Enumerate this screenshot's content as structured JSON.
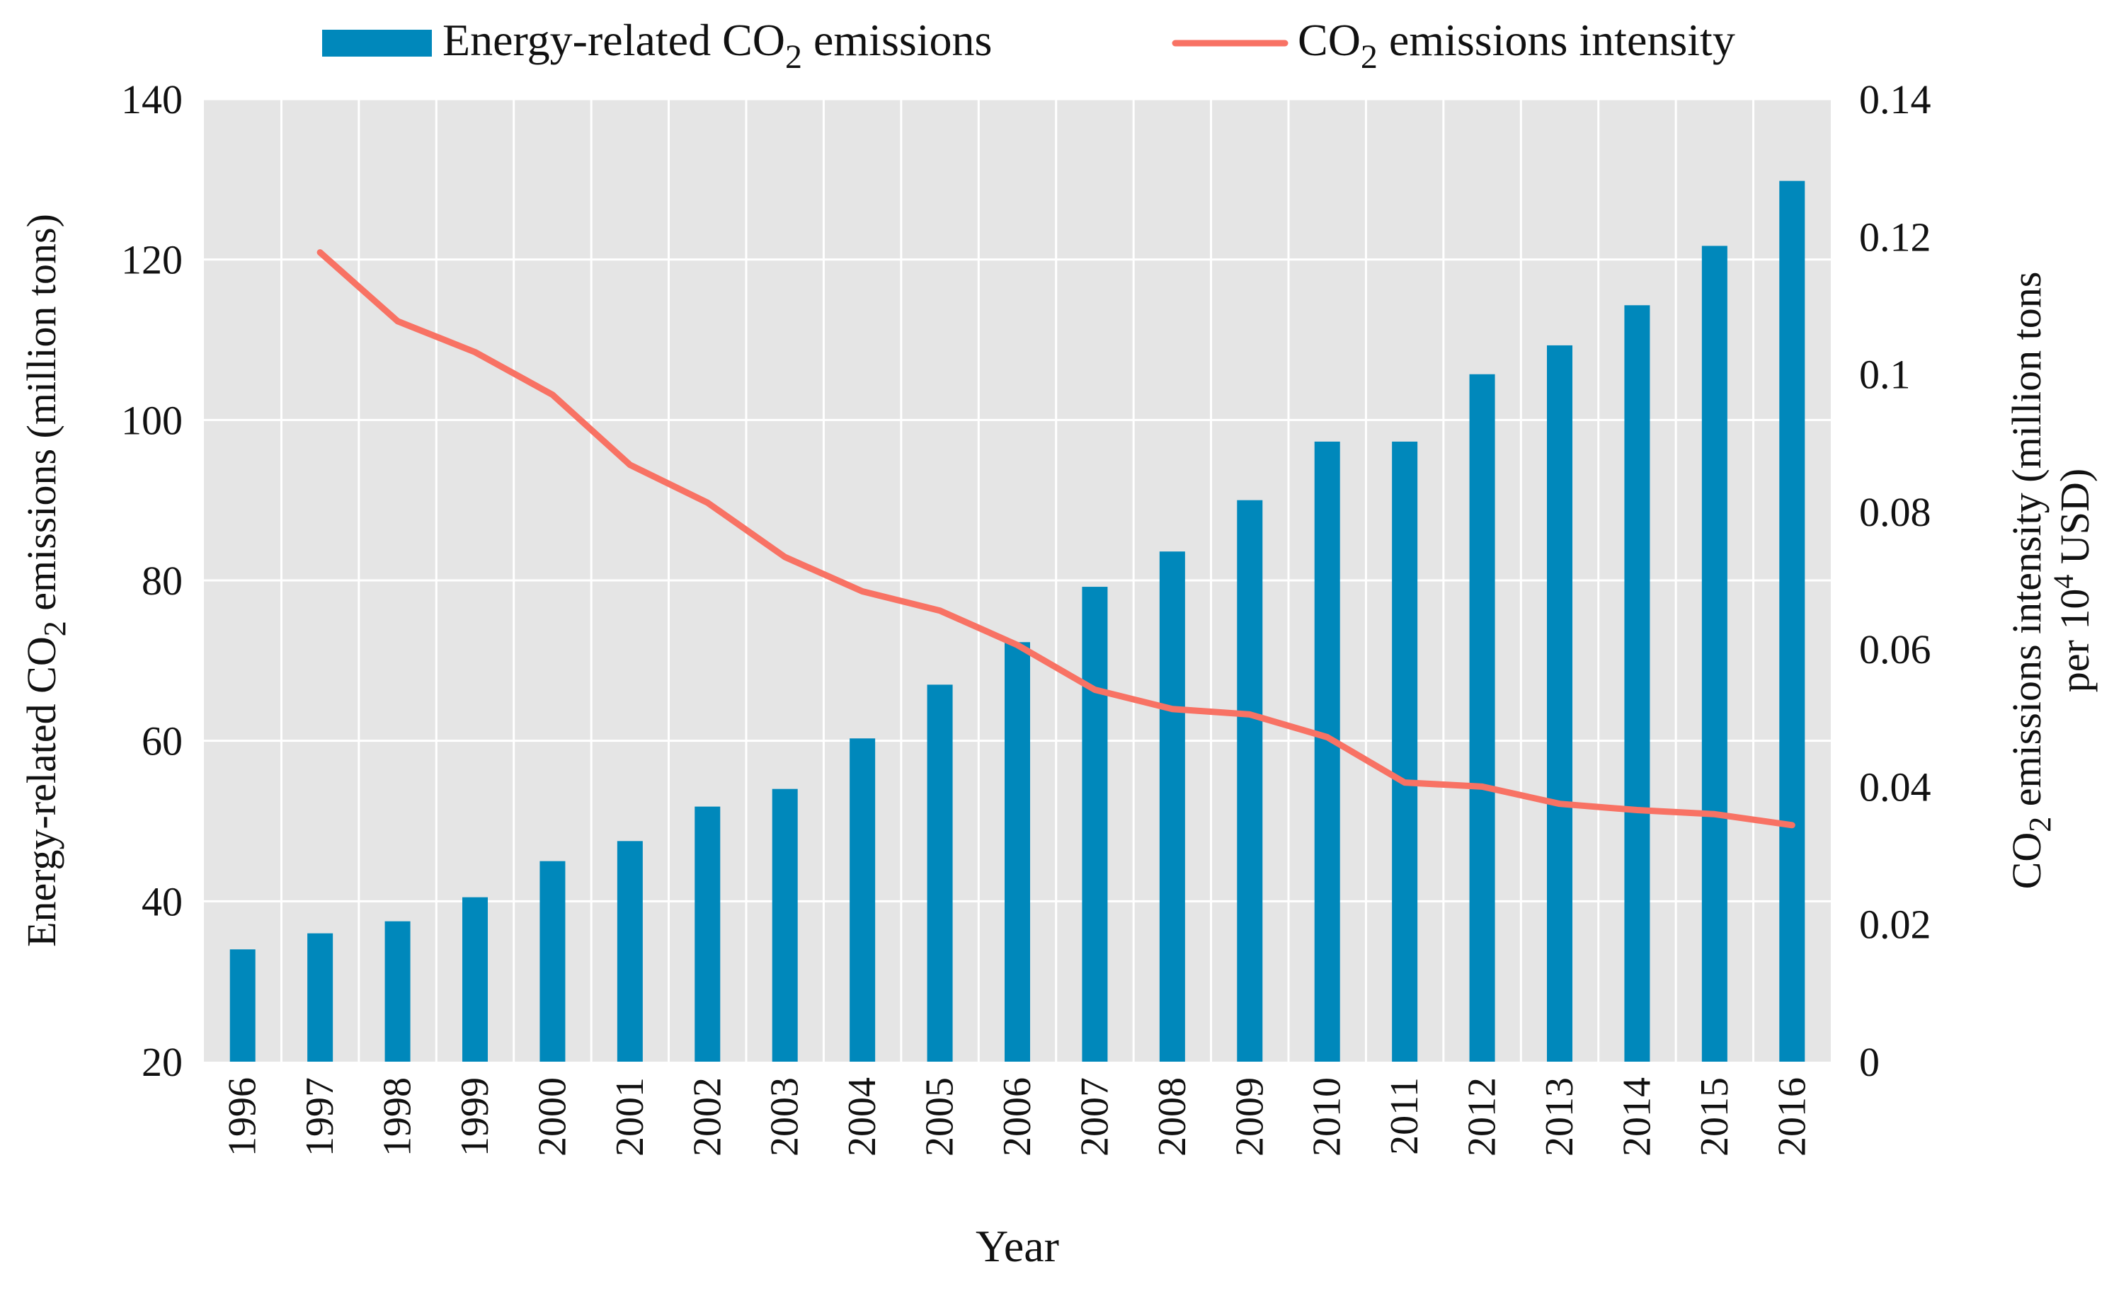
{
  "colors": {
    "bar": "#0088BB",
    "line": "#F87264",
    "plot_background": "#E5E5E5",
    "grid": "#FFFFFF"
  },
  "chart_data": {
    "type": "bar",
    "title": "",
    "xlabel": "Year",
    "ylabel": {
      "prefix": "Energy-related CO",
      "sub": "2",
      "suffix": " emissions (million tons)"
    },
    "y2label": {
      "line1_prefix": "CO",
      "line1_sub": "2",
      "line1_suffix": " emissions intensity (million tons",
      "line2_prefix": "per 10",
      "line2_sup": "4",
      "line2_suffix": " USD)"
    },
    "ylim": [
      20,
      140
    ],
    "y2lim": [
      0,
      0.14
    ],
    "yticks": [
      "20",
      "40",
      "60",
      "80",
      "100",
      "120",
      "140"
    ],
    "y2ticks": [
      "0",
      "0.02",
      "0.04",
      "0.06",
      "0.08",
      "0.1",
      "0.12",
      "0.14"
    ],
    "grid": true,
    "legend_position": "top-center",
    "categories": [
      "1996",
      "1997",
      "1998",
      "1999",
      "2000",
      "2001",
      "2002",
      "2003",
      "2004",
      "2005",
      "2006",
      "2007",
      "2008",
      "2009",
      "2010",
      "2011",
      "2012",
      "2013",
      "2014",
      "2015",
      "2016"
    ],
    "series": [
      {
        "name": "Energy-related CO2 emissions",
        "legend_prefix": "Energy-related CO",
        "legend_sub": "2",
        "legend_suffix": " emissions",
        "type": "bar",
        "axis": "left",
        "values": [
          34.0,
          36.0,
          37.5,
          40.5,
          45.0,
          47.5,
          51.8,
          54.0,
          60.3,
          67.0,
          72.3,
          79.2,
          83.6,
          90.0,
          97.3,
          97.3,
          105.7,
          109.3,
          114.3,
          121.7,
          129.8
        ]
      },
      {
        "name": "CO2 emissions intensity",
        "legend_prefix": "CO",
        "legend_sub": "2",
        "legend_suffix": " emissions intensity",
        "type": "line",
        "axis": "right",
        "values": [
          null,
          0.1177,
          0.1077,
          0.1032,
          0.097,
          0.0868,
          0.0813,
          0.0734,
          0.0684,
          0.0656,
          0.0606,
          0.0541,
          0.0513,
          0.0505,
          0.0472,
          0.0406,
          0.04,
          0.0375,
          0.0366,
          0.036,
          0.0344
        ]
      }
    ]
  }
}
